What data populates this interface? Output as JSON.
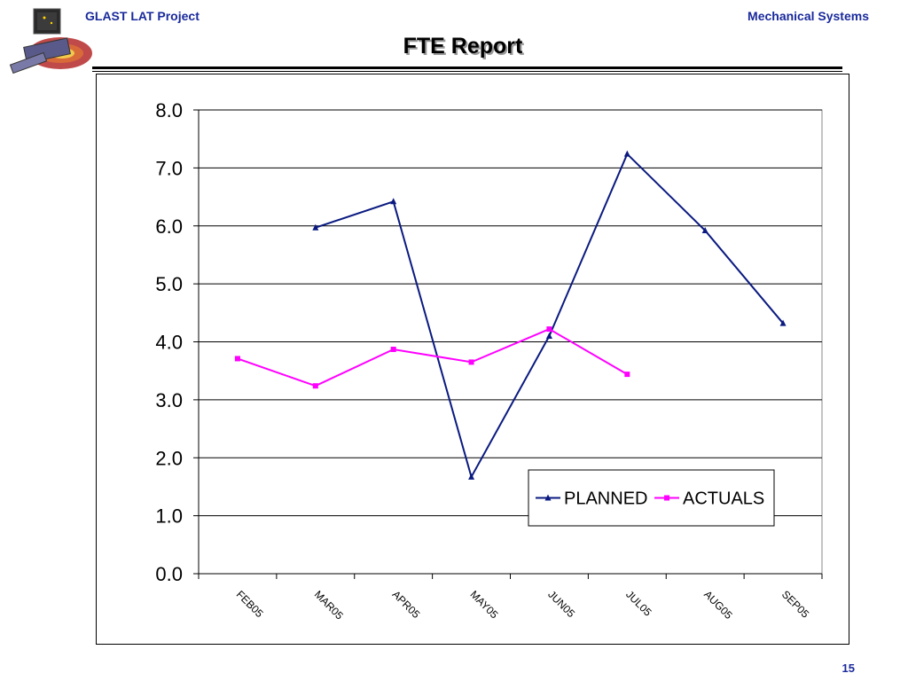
{
  "header": {
    "left": "GLAST LAT Project",
    "right": "Mechanical Systems"
  },
  "title": "FTE Report",
  "page_number": "15",
  "colors": {
    "planned": "#0a1a80",
    "actuals": "#ff00ff",
    "header_text": "#1a2a9c"
  },
  "logo": {
    "icon": "glast-satellite-logo-icon"
  },
  "chart_data": {
    "type": "line",
    "title": "",
    "xlabel": "",
    "ylabel": "",
    "categories": [
      "FEB05",
      "MAR05",
      "APR05",
      "MAY05",
      "JUN05",
      "JUL05",
      "AUG05",
      "SEP05"
    ],
    "ylim": [
      0,
      8
    ],
    "yticks": [
      "0.0",
      "1.0",
      "2.0",
      "3.0",
      "4.0",
      "5.0",
      "6.0",
      "7.0",
      "8.0"
    ],
    "grid": true,
    "legend_position": "bottom-right",
    "series": [
      {
        "name": "PLANNED",
        "marker": "triangle",
        "values": [
          null,
          5.97,
          6.42,
          1.67,
          4.1,
          7.24,
          5.92,
          4.32
        ]
      },
      {
        "name": "ACTUALS",
        "marker": "square",
        "values": [
          3.71,
          3.24,
          3.87,
          3.65,
          4.22,
          3.44,
          null,
          null
        ]
      }
    ]
  }
}
